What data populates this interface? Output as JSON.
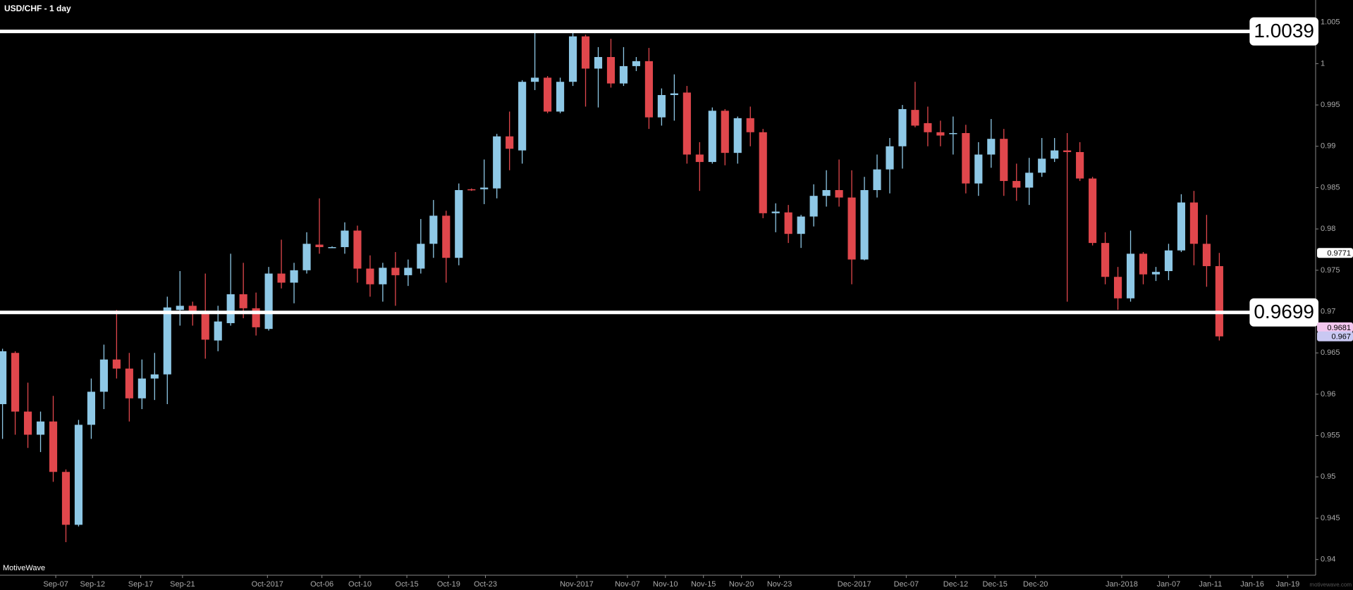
{
  "chart_data": {
    "type": "candlestick",
    "title": "USD/CHF - 1 day",
    "brand": "MotiveWave",
    "watermark_site": "motivewave.com",
    "up_color": "#8ec8e6",
    "down_color": "#e0474c",
    "open": [
      0.9588,
      0.965,
      0.9579,
      0.9551,
      0.9567,
      0.9506,
      0.9442,
      0.9563,
      0.9603,
      0.9642,
      0.9631,
      0.9595,
      0.9619,
      0.9624,
      0.9702,
      0.9707,
      0.9697,
      0.9665,
      0.9686,
      0.9721,
      0.9704,
      0.9679,
      0.9746,
      0.9735,
      0.975,
      0.9781,
      0.9777,
      0.9778,
      0.9798,
      0.9752,
      0.9733,
      0.9753,
      0.9744,
      0.9752,
      0.9782,
      0.9816,
      0.9765,
      0.9848,
      0.9848,
      0.9849,
      0.9912,
      0.9895,
      0.9978,
      0.9983,
      0.9942,
      0.9978,
      1.0033,
      0.9994,
      1.0008,
      0.9976,
      0.9997,
      1.0003,
      0.9935,
      0.9962,
      0.9965,
      0.989,
      0.9881,
      0.9943,
      0.9892,
      0.9934,
      0.9917,
      0.9819,
      0.982,
      0.9794,
      0.9815,
      0.984,
      0.9847,
      0.9838,
      0.9763,
      0.9847,
      0.9872,
      0.99,
      0.9944,
      0.9928,
      0.9917,
      0.9915,
      0.9916,
      0.9855,
      0.989,
      0.9909,
      0.9858,
      0.985,
      0.9868,
      0.9885,
      0.9895,
      0.9893,
      0.9861,
      0.9783,
      0.9742,
      0.9716,
      0.977,
      0.9745,
      0.9749,
      0.9774,
      0.9832,
      0.9782,
      0.9755
    ],
    "high": [
      0.9655,
      0.9652,
      0.9614,
      0.9579,
      0.9598,
      0.9509,
      0.9569,
      0.9619,
      0.966,
      0.9702,
      0.965,
      0.9642,
      0.965,
      0.9718,
      0.9749,
      0.9712,
      0.9746,
      0.9707,
      0.977,
      0.9759,
      0.9723,
      0.9754,
      0.9787,
      0.9759,
      0.9796,
      0.9837,
      0.9779,
      0.9808,
      0.9804,
      0.9768,
      0.9759,
      0.9772,
      0.9763,
      0.9812,
      0.9835,
      0.9822,
      0.9855,
      0.9849,
      0.9884,
      0.9915,
      0.9942,
      0.998,
      1.0039,
      0.9985,
      0.9983,
      1.0038,
      1.0035,
      1.002,
      1.003,
      1.002,
      1.0008,
      1.0019,
      0.997,
      0.9987,
      0.9973,
      0.9905,
      0.9947,
      0.9945,
      0.9936,
      0.9948,
      0.9921,
      0.9831,
      0.9829,
      0.9817,
      0.9854,
      0.9871,
      0.9884,
      0.9871,
      0.9863,
      0.989,
      0.991,
      0.995,
      0.9978,
      0.9948,
      0.9931,
      0.9936,
      0.9926,
      0.9905,
      0.9933,
      0.9921,
      0.9879,
      0.9886,
      0.991,
      0.991,
      0.9916,
      0.9905,
      0.9863,
      0.9796,
      0.9754,
      0.9798,
      0.9772,
      0.9754,
      0.9782,
      0.9842,
      0.9846,
      0.9817,
      0.9771
    ],
    "low": [
      0.9546,
      0.9551,
      0.9535,
      0.953,
      0.9494,
      0.9421,
      0.944,
      0.9546,
      0.9582,
      0.9619,
      0.9567,
      0.9582,
      0.9593,
      0.9588,
      0.9683,
      0.9683,
      0.9643,
      0.9652,
      0.9683,
      0.9692,
      0.9671,
      0.9677,
      0.9728,
      0.971,
      0.9746,
      0.977,
      0.9777,
      0.977,
      0.9735,
      0.9718,
      0.9712,
      0.9707,
      0.9731,
      0.9746,
      0.9765,
      0.9735,
      0.9756,
      0.9846,
      0.983,
      0.9837,
      0.9871,
      0.9879,
      0.9968,
      0.994,
      0.994,
      0.9973,
      0.9948,
      0.9947,
      0.9971,
      0.9973,
      0.9991,
      0.9921,
      0.9925,
      0.9931,
      0.9879,
      0.9846,
      0.9879,
      0.9877,
      0.9879,
      0.99,
      0.9813,
      0.9796,
      0.9783,
      0.9777,
      0.9803,
      0.9827,
      0.9827,
      0.9733,
      0.9762,
      0.9838,
      0.9843,
      0.9873,
      0.9923,
      0.99,
      0.99,
      0.989,
      0.9843,
      0.984,
      0.9874,
      0.984,
      0.9834,
      0.9829,
      0.9863,
      0.9881,
      0.9712,
      0.9858,
      0.978,
      0.9733,
      0.9702,
      0.9712,
      0.9733,
      0.9737,
      0.9738,
      0.9772,
      0.9756,
      0.973,
      0.9665
    ],
    "close": [
      0.9652,
      0.9579,
      0.9551,
      0.9567,
      0.9506,
      0.9442,
      0.9563,
      0.9603,
      0.9642,
      0.9631,
      0.9595,
      0.9619,
      0.9624,
      0.9705,
      0.9707,
      0.9697,
      0.9666,
      0.9688,
      0.9721,
      0.9704,
      0.9681,
      0.9746,
      0.9735,
      0.975,
      0.9782,
      0.9778,
      0.9778,
      0.9798,
      0.9752,
      0.9733,
      0.9753,
      0.9744,
      0.9753,
      0.9782,
      0.9816,
      0.9765,
      0.9847,
      0.9847,
      0.985,
      0.9912,
      0.9897,
      0.9978,
      0.9983,
      0.9942,
      0.9978,
      1.0033,
      0.9994,
      1.0008,
      0.9976,
      0.9997,
      1.0003,
      0.9935,
      0.9962,
      0.9964,
      0.989,
      0.9881,
      0.9943,
      0.9892,
      0.9934,
      0.9917,
      0.9819,
      0.9821,
      0.9794,
      0.9815,
      0.984,
      0.9847,
      0.9838,
      0.9763,
      0.9847,
      0.9872,
      0.99,
      0.9945,
      0.9925,
      0.9917,
      0.9913,
      0.9916,
      0.9855,
      0.989,
      0.9909,
      0.9858,
      0.985,
      0.9868,
      0.9885,
      0.9895,
      0.9893,
      0.9861,
      0.9783,
      0.9742,
      0.9716,
      0.977,
      0.9745,
      0.9748,
      0.9774,
      0.9832,
      0.9782,
      0.9755,
      0.967
    ],
    "xlim": [
      -0.2,
      103.6
    ],
    "xticks": [
      {
        "value": 4.2,
        "label": "Sep-07"
      },
      {
        "value": 7.1,
        "label": "Sep-12"
      },
      {
        "value": 10.9,
        "label": "Sep-17"
      },
      {
        "value": 14.2,
        "label": "Sep-21"
      },
      {
        "value": 20.9,
        "label": "Oct-2017"
      },
      {
        "value": 25.2,
        "label": "Oct-06"
      },
      {
        "value": 28.2,
        "label": "Oct-10"
      },
      {
        "value": 31.9,
        "label": "Oct-15"
      },
      {
        "value": 35.2,
        "label": "Oct-19"
      },
      {
        "value": 38.1,
        "label": "Oct-23"
      },
      {
        "value": 45.3,
        "label": "Nov-2017"
      },
      {
        "value": 49.3,
        "label": "Nov-07"
      },
      {
        "value": 52.3,
        "label": "Nov-10"
      },
      {
        "value": 55.3,
        "label": "Nov-15"
      },
      {
        "value": 58.3,
        "label": "Nov-20"
      },
      {
        "value": 61.3,
        "label": "Nov-23"
      },
      {
        "value": 67.2,
        "label": "Dec-2017"
      },
      {
        "value": 71.3,
        "label": "Dec-07"
      },
      {
        "value": 75.2,
        "label": "Dec-12"
      },
      {
        "value": 78.3,
        "label": "Dec-15"
      },
      {
        "value": 81.5,
        "label": "Dec-20"
      },
      {
        "value": 88.3,
        "label": "Jan-2018"
      },
      {
        "value": 92.0,
        "label": "Jan-07"
      },
      {
        "value": 95.3,
        "label": "Jan-11"
      },
      {
        "value": 98.6,
        "label": "Jan-16"
      },
      {
        "value": 101.4,
        "label": "Jan-19"
      }
    ],
    "ylim": [
      0.9381,
      1.0077
    ],
    "yticks": [
      0.94,
      0.945,
      0.95,
      0.955,
      0.96,
      0.965,
      0.97,
      0.975,
      0.98,
      0.985,
      0.99,
      0.995,
      1,
      1.005
    ],
    "levels": [
      {
        "value": 1.0039,
        "color": "#ffffff"
      },
      {
        "value": 0.9699,
        "color": "#ffffff"
      }
    ],
    "price_markers": [
      {
        "value": 0.9771,
        "color": "#ffffff"
      },
      {
        "value": 0.9681,
        "color": "#f2c6ee"
      },
      {
        "value": 0.967,
        "color": "#c9c8f2"
      }
    ]
  }
}
